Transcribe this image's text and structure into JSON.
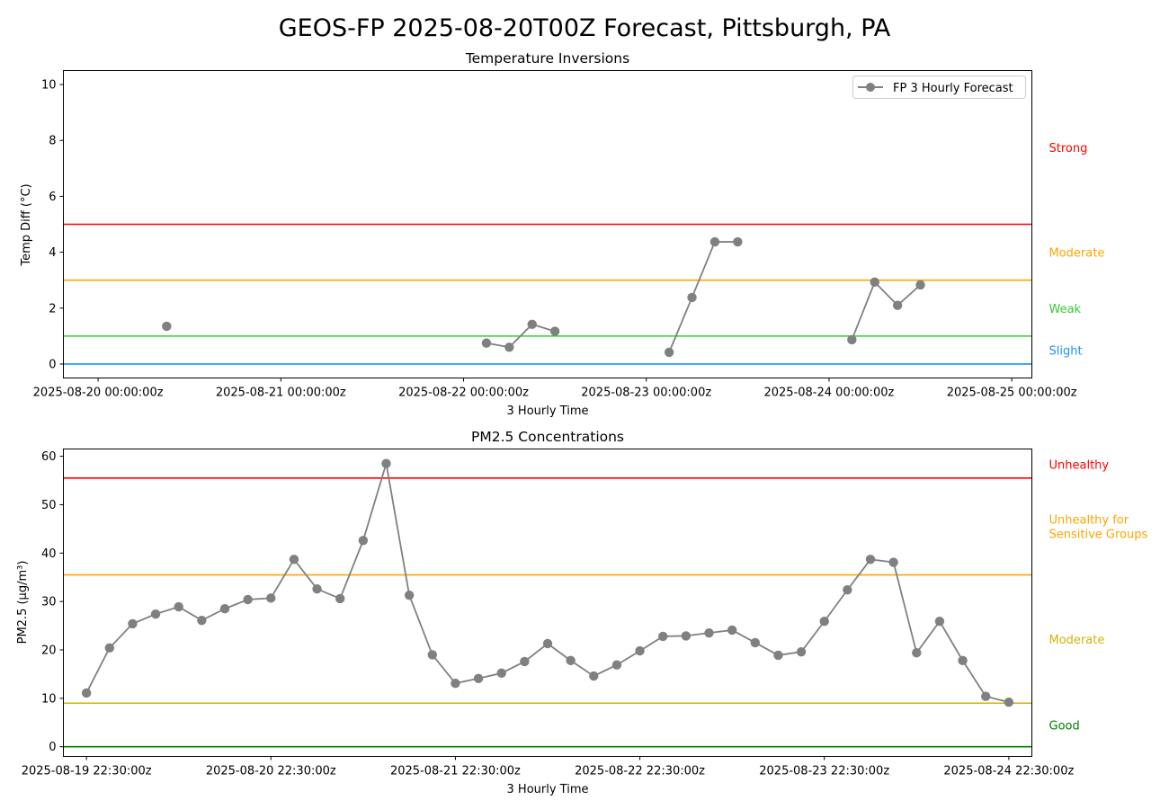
{
  "figure": {
    "title": "GEOS-FP 2025-08-20T00Z Forecast, Pittsburgh, PA"
  },
  "chart_data": [
    {
      "type": "line",
      "title": "Temperature Inversions",
      "xlabel": "3 Hourly Time",
      "ylabel": "Temp Diff (°C)",
      "x_unit": "days since 2025-08-20 00:00:00z",
      "xlim": [
        -0.19,
        5.11
      ],
      "ylim": [
        -0.5,
        10.5
      ],
      "yticks": [
        0,
        2,
        4,
        6,
        8,
        10
      ],
      "xticks": [
        {
          "label": "2025-08-20 00:00:00z",
          "value": 0
        },
        {
          "label": "2025-08-21 00:00:00z",
          "value": 1
        },
        {
          "label": "2025-08-22 00:00:00z",
          "value": 2
        },
        {
          "label": "2025-08-23 00:00:00z",
          "value": 3
        },
        {
          "label": "2025-08-24 00:00:00z",
          "value": 4
        },
        {
          "label": "2025-08-25 00:00:00z",
          "value": 5
        }
      ],
      "legend": {
        "label": "FP 3 Hourly Forecast",
        "position": "top-right"
      },
      "thresholds": [
        {
          "value": 0,
          "color": "#1e90ff"
        },
        {
          "value": 1,
          "color": "#32cd32"
        },
        {
          "value": 3,
          "color": "#ffa500"
        },
        {
          "value": 5,
          "color": "#ff0000"
        }
      ],
      "category_labels": [
        {
          "label": "Slight",
          "value": 0.5,
          "color": "#1e90ff"
        },
        {
          "label": "Weak",
          "value": 2.0,
          "color": "#32cd32"
        },
        {
          "label": "Moderate",
          "value": 4.0,
          "color": "#ffa500"
        },
        {
          "label": "Strong",
          "value": 7.75,
          "color": "#ff0000"
        }
      ],
      "series": [
        {
          "name": "FP 3 Hourly Forecast",
          "color": "#808080",
          "segments": [
            [
              [
                0.375,
                1.35
              ]
            ],
            [
              [
                2.125,
                0.75
              ],
              [
                2.25,
                0.6
              ],
              [
                2.375,
                1.42
              ],
              [
                2.5,
                1.17
              ]
            ],
            [
              [
                3.125,
                0.42
              ],
              [
                3.25,
                2.38
              ],
              [
                3.375,
                4.37
              ],
              [
                3.5,
                4.37
              ]
            ],
            [
              [
                4.125,
                0.87
              ],
              [
                4.25,
                2.93
              ],
              [
                4.375,
                2.1
              ],
              [
                4.5,
                2.83
              ]
            ]
          ]
        }
      ]
    },
    {
      "type": "line",
      "title": "PM2.5 Concentrations",
      "xlabel": "3 Hourly Time",
      "ylabel": "PM2.5 (µg/m³)",
      "x_unit": "days since 2025-08-19 22:30:00z",
      "xlim": [
        -0.125,
        5.125
      ],
      "ylim": [
        -2,
        61.5
      ],
      "yticks": [
        0,
        10,
        20,
        30,
        40,
        50,
        60
      ],
      "xticks": [
        {
          "label": "2025-08-19 22:30:00z",
          "value": 0
        },
        {
          "label": "2025-08-20 22:30:00z",
          "value": 1
        },
        {
          "label": "2025-08-21 22:30:00z",
          "value": 2
        },
        {
          "label": "2025-08-22 22:30:00z",
          "value": 3
        },
        {
          "label": "2025-08-23 22:30:00z",
          "value": 4
        },
        {
          "label": "2025-08-24 22:30:00z",
          "value": 5
        }
      ],
      "thresholds": [
        {
          "value": 0,
          "color": "#008000"
        },
        {
          "value": 9,
          "color": "#d4b300"
        },
        {
          "value": 35.5,
          "color": "#ffa500"
        },
        {
          "value": 55.5,
          "color": "#ff0000"
        }
      ],
      "category_labels": [
        {
          "lines": [
            "Good"
          ],
          "value": 4.5,
          "color": "#008000"
        },
        {
          "lines": [
            "Moderate"
          ],
          "value": 22.25,
          "color": "#d4b300"
        },
        {
          "lines": [
            "Unhealthy for",
            "Sensitive Groups"
          ],
          "value": 45.5,
          "color": "#ffa500"
        },
        {
          "lines": [
            "Unhealthy"
          ],
          "value": 58.3,
          "color": "#ff0000"
        }
      ],
      "series": [
        {
          "name": "FP 3 Hourly Forecast",
          "color": "#808080",
          "x_start": 0,
          "x_step": 0.125,
          "values": [
            11.1,
            20.4,
            25.4,
            27.4,
            28.9,
            26.1,
            28.5,
            30.4,
            30.7,
            38.7,
            32.6,
            30.6,
            42.6,
            58.5,
            31.3,
            19.0,
            13.1,
            14.1,
            15.2,
            17.6,
            21.3,
            17.8,
            14.6,
            16.9,
            19.8,
            22.8,
            22.9,
            23.5,
            24.1,
            21.5,
            18.9,
            19.6,
            25.9,
            32.4,
            38.7,
            38.1,
            19.4,
            25.9,
            17.8,
            10.4,
            9.2
          ]
        }
      ]
    }
  ]
}
